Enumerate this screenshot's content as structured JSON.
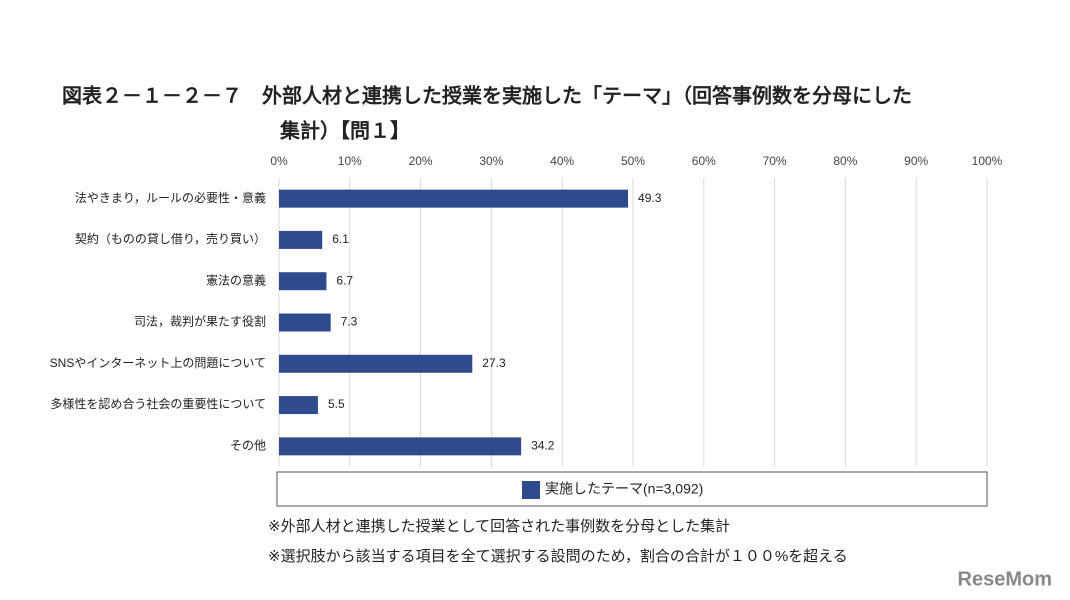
{
  "chart_data": {
    "type": "hbar",
    "title": [
      "図表２－１－２－７　外部人材と連携した授業を実施した「テーマ」（回答事例数を分母にした",
      "集計）【問１】"
    ],
    "categories": [
      "法やきまり，ルールの必要性・意義",
      "契約（ものの貸し借り，売り買い）",
      "憲法の意義",
      "司法，裁判が果たす役割",
      "SNSやインターネット上の問題について",
      "多様性を認め合う社会の重要性について",
      "その他"
    ],
    "series": [
      {
        "name": "実施したテーマ(n=3,092)",
        "color": "#2f4b8e",
        "values": [
          49.3,
          6.1,
          6.7,
          7.3,
          27.3,
          5.5,
          34.2
        ]
      }
    ],
    "xlim": [
      0,
      100
    ],
    "xticks": [
      {
        "value": 0,
        "label": "0%"
      },
      {
        "value": 10,
        "label": "10%"
      },
      {
        "value": 20,
        "label": "20%"
      },
      {
        "value": 30,
        "label": "30%"
      },
      {
        "value": 40,
        "label": "40%"
      },
      {
        "value": 50,
        "label": "50%"
      },
      {
        "value": 60,
        "label": "60%"
      },
      {
        "value": 70,
        "label": "70%"
      },
      {
        "value": 80,
        "label": "80%"
      },
      {
        "value": 90,
        "label": "90%"
      },
      {
        "value": 100,
        "label": "100%"
      }
    ],
    "grid": true,
    "notes": [
      "※外部人材と連携した授業として回答された事例数を分母とした集計",
      "※選択肢から該当する項目を全て選択する設問のため，割合の合計が１００%を超える"
    ],
    "watermark": "ReseMom"
  }
}
